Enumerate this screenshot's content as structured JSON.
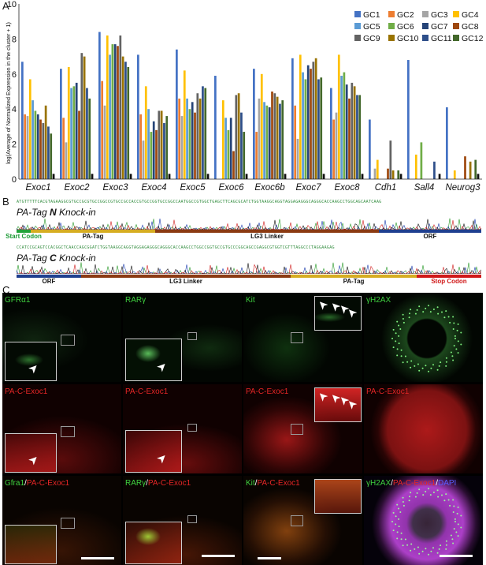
{
  "panels": {
    "a": "A",
    "b": "B",
    "c": "C"
  },
  "chart_data": {
    "type": "bar",
    "ylabel": "log(Average of Normalized Expression in the cluster + 1)",
    "ylim": [
      0,
      10
    ],
    "yticks": [
      "0",
      "2",
      "4",
      "6",
      "8",
      "10"
    ],
    "categories": [
      "Exoc1",
      "Exoc2",
      "Exoc3",
      "Exoc4",
      "Exoc5",
      "Exoc6",
      "Exoc6b",
      "Exoc7",
      "Exoc8",
      "Cdh1",
      "Sall4",
      "Neurog3"
    ],
    "legend_position": "top-right",
    "series": [
      {
        "name": "GC1",
        "color": "#4472c4",
        "values": [
          6.7,
          6.3,
          8.4,
          7.1,
          7.4,
          5.9,
          6.3,
          6.9,
          5.2,
          3.4,
          6.8,
          4.1
        ]
      },
      {
        "name": "GC2",
        "color": "#ed7d31",
        "values": [
          3.7,
          3.5,
          5.6,
          3.7,
          4.6,
          0.0,
          2.7,
          4.2,
          3.4,
          0.0,
          0.0,
          0.0
        ]
      },
      {
        "name": "GC3",
        "color": "#a5a5a5",
        "values": [
          3.6,
          2.1,
          4.2,
          2.2,
          3.6,
          0.0,
          4.6,
          2.3,
          3.8,
          0.6,
          0.0,
          0.0
        ]
      },
      {
        "name": "GC4",
        "color": "#ffc000",
        "values": [
          5.7,
          6.4,
          8.2,
          5.3,
          6.2,
          4.5,
          6.0,
          7.1,
          7.1,
          1.1,
          1.4,
          0.5
        ]
      },
      {
        "name": "GC5",
        "color": "#5b9bd5",
        "values": [
          4.5,
          5.2,
          7.1,
          4.0,
          4.6,
          3.5,
          4.4,
          6.1,
          5.9,
          0.0,
          0.0,
          0.0
        ]
      },
      {
        "name": "GC6",
        "color": "#70ad47",
        "values": [
          3.9,
          5.3,
          7.7,
          2.7,
          4.0,
          2.8,
          4.2,
          5.7,
          6.1,
          0.0,
          2.1,
          0.0
        ]
      },
      {
        "name": "GC7",
        "color": "#264478",
        "values": [
          3.7,
          5.5,
          7.7,
          3.3,
          4.4,
          3.5,
          4.1,
          6.5,
          5.4,
          0.0,
          0.0,
          0.0
        ]
      },
      {
        "name": "GC8",
        "color": "#9e480e",
        "values": [
          3.4,
          3.9,
          7.6,
          2.8,
          3.8,
          1.6,
          5.0,
          6.3,
          4.6,
          0.6,
          0.0,
          1.3
        ]
      },
      {
        "name": "GC9",
        "color": "#636363",
        "values": [
          3.2,
          7.2,
          8.2,
          3.9,
          4.9,
          4.8,
          4.9,
          6.7,
          5.5,
          2.2,
          0.0,
          0.0
        ]
      },
      {
        "name": "GC10",
        "color": "#997300",
        "values": [
          4.2,
          7.0,
          7.0,
          3.9,
          4.6,
          4.9,
          4.7,
          6.9,
          5.3,
          0.5,
          0.0,
          1.0
        ]
      },
      {
        "name": "GC11",
        "color": "#2e4f8a",
        "values": [
          3.0,
          5.2,
          6.7,
          3.2,
          5.3,
          3.8,
          4.3,
          5.7,
          4.8,
          0.0,
          1.0,
          0.0
        ]
      },
      {
        "name": "GC12",
        "color": "#43682b",
        "values": [
          2.6,
          4.6,
          6.4,
          3.6,
          5.2,
          2.7,
          4.5,
          5.8,
          4.8,
          0.5,
          0.0,
          1.1
        ]
      },
      {
        "name": "",
        "color": "#111111",
        "values": [
          0.3,
          0.3,
          0.3,
          0.3,
          0.3,
          0.3,
          0.3,
          0.3,
          0.3,
          0.3,
          0.3,
          0.3
        ]
      }
    ]
  },
  "panel_b": {
    "n": {
      "title_pre": "PA-Tag ",
      "title_bold": "N",
      "title_post": " Knock-in",
      "sequence": "ATGTTTTTCACGTAGAAGGCGTGCCGCGTGCCGGCCGTGCCGCCACCGTGCCGGTGCCGGCCAATGGCCGTGGCTGAGCTTCAGCGCATCTGGTAAGGCAGGTAGGAGAGGGCAGGGCACCAAGCCTGGCAGCAATCAAG",
      "segments": [
        {
          "label": "Start Codon",
          "color": "#22a33a",
          "text_color": "#1a9a34"
        },
        {
          "label": "PA-Tag",
          "color": "#d6ad21",
          "text_color": "#111111"
        },
        {
          "label": "LG3 Linker",
          "color": "#8b3a12",
          "text_color": "#111111"
        },
        {
          "label": "ORF",
          "color": "#1f3f8f",
          "text_color": "#111111"
        }
      ]
    },
    "c": {
      "title_pre": "PA-Tag ",
      "title_bold": "C",
      "title_post": " Knock-in",
      "sequence": "CCATCCGCAGTCCACGGCTCAACCAGCGGATCTGGTAAGGCAGGTAGGAGAGGGCAGGGCACCAAGCCTGGCCGGTGCCGTGCCCGGCAGCCGAGGCGTGGTCGTTTAGGCCCTAGGAAGAG",
      "segments": [
        {
          "label": "ORF",
          "color": "#1f3f8f",
          "text_color": "#111111"
        },
        {
          "label": "LG3 Linker",
          "color": "#8b3a12",
          "text_color": "#111111"
        },
        {
          "label": "PA-Tag",
          "color": "#d6ad21",
          "text_color": "#111111"
        },
        {
          "label": "Stop Codon",
          "color": "#d01818",
          "text_color": "#d01818"
        }
      ]
    }
  },
  "panel_c": {
    "columns": [
      {
        "stain": "GFRα1",
        "merge_green": "Gfra1"
      },
      {
        "stain": "RARγ",
        "merge_green": "RARγ"
      },
      {
        "stain": "Kit",
        "merge_green": "Kit"
      },
      {
        "stain": "γH2AX",
        "merge_green": "γH2AX"
      }
    ],
    "red_label": "PA-C-Exoc1",
    "slash": "/",
    "dapi": "DAPI",
    "colors": {
      "green": "#3fd13f",
      "red": "#e52626",
      "blue": "#5a5cff"
    }
  }
}
